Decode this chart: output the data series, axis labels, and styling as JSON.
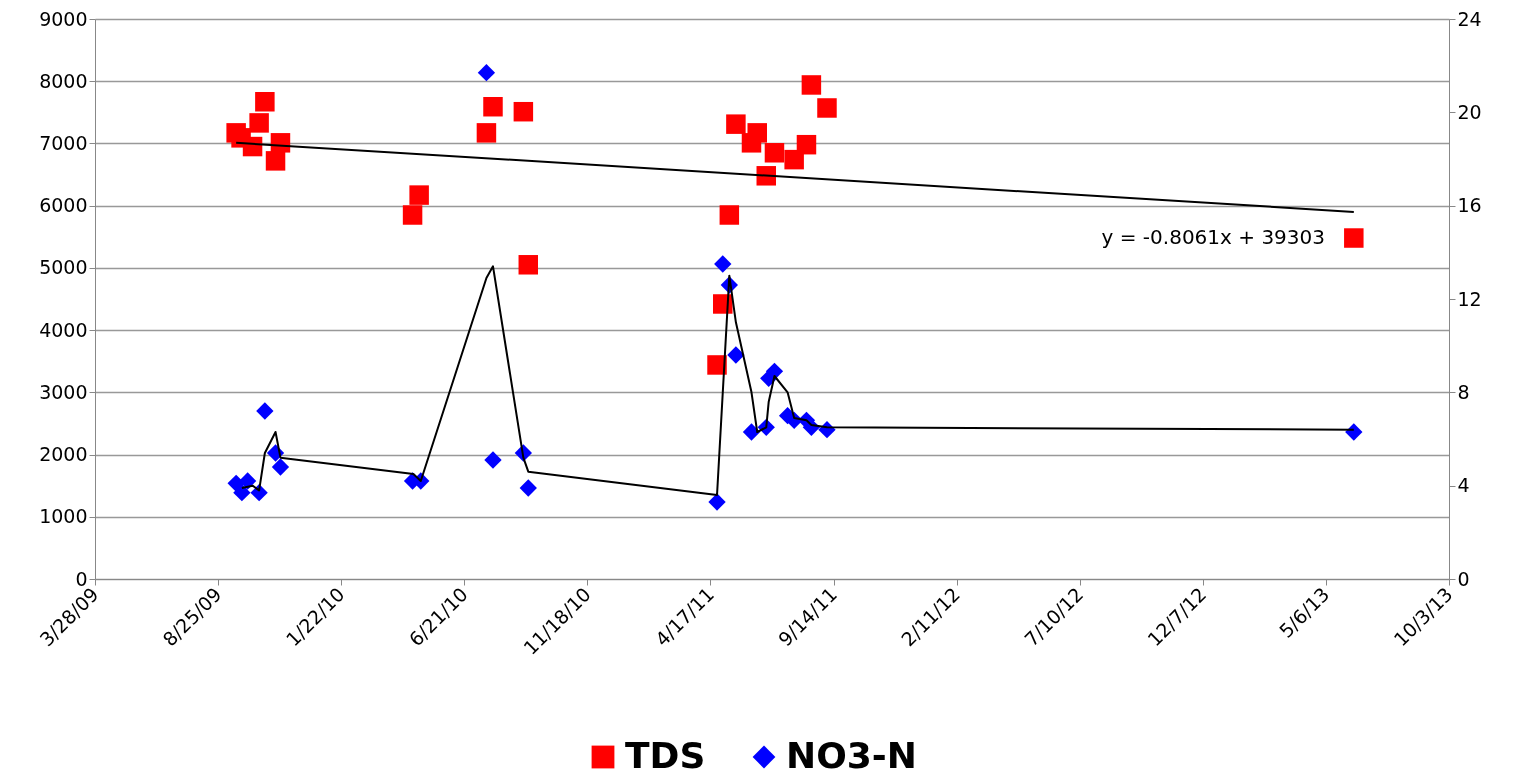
{
  "chart_data": {
    "type": "scatter",
    "xlim": [
      "2009-03-28",
      "2013-10-03"
    ],
    "xticks": [
      {
        "value": "2009-03-28",
        "label": "3/28/09"
      },
      {
        "value": "2009-08-25",
        "label": "8/25/09"
      },
      {
        "value": "2010-01-22",
        "label": "1/22/10"
      },
      {
        "value": "2010-06-21",
        "label": "6/21/10"
      },
      {
        "value": "2010-11-18",
        "label": "11/18/10"
      },
      {
        "value": "2011-04-17",
        "label": "4/17/11"
      },
      {
        "value": "2011-09-14",
        "label": "9/14/11"
      },
      {
        "value": "2012-02-11",
        "label": "2/11/12"
      },
      {
        "value": "2012-07-10",
        "label": "7/10/12"
      },
      {
        "value": "2012-12-07",
        "label": "12/7/12"
      },
      {
        "value": "2013-05-06",
        "label": "5/6/13"
      },
      {
        "value": "2013-10-03",
        "label": "10/3/13"
      }
    ],
    "ylim": [
      0,
      9000
    ],
    "yticks": [
      0,
      1000,
      2000,
      3000,
      4000,
      5000,
      6000,
      7000,
      8000,
      9000
    ],
    "y2lim": [
      0,
      24
    ],
    "y2ticks": [
      0,
      4,
      8,
      12,
      16,
      20,
      24
    ],
    "grid": "y",
    "legend": "bottom",
    "annotations": [
      "y = -0.8061x + 39303"
    ],
    "series": [
      {
        "name": "TDS",
        "marker": "square",
        "color": "#ff0000",
        "x": [
          "2009-09-16",
          "2009-09-22",
          "2009-10-06",
          "2009-10-14",
          "2009-10-21",
          "2009-11-03",
          "2009-11-09",
          "2010-04-19",
          "2010-04-27",
          "2010-07-18",
          "2010-07-26",
          "2010-09-01",
          "2010-09-07",
          "2011-04-25",
          "2011-05-02",
          "2011-05-10",
          "2011-05-18",
          "2011-06-06",
          "2011-06-13",
          "2011-06-24",
          "2011-07-04",
          "2011-07-28",
          "2011-08-12",
          "2011-08-18",
          "2011-09-06",
          "2013-06-09"
        ],
        "values": [
          7170,
          7090,
          6950,
          7330,
          7670,
          6720,
          7010,
          5850,
          6170,
          7170,
          7590,
          7510,
          5050,
          3440,
          4420,
          5850,
          7310,
          7010,
          7170,
          6480,
          6850,
          6740,
          6980,
          7940,
          7570,
          5480
        ]
      },
      {
        "name": "NO3-N",
        "marker": "diamond",
        "color": "#0000ff",
        "axis": "y2",
        "x": [
          "2009-09-16",
          "2009-09-23",
          "2009-09-30",
          "2009-10-14",
          "2009-10-21",
          "2009-11-03",
          "2009-11-09",
          "2010-04-19",
          "2010-04-29",
          "2010-07-18",
          "2010-07-26",
          "2010-09-01",
          "2010-09-07",
          "2011-04-25",
          "2011-05-02",
          "2011-05-10",
          "2011-05-18",
          "2011-06-06",
          "2011-06-24",
          "2011-06-27",
          "2011-07-04",
          "2011-07-20",
          "2011-07-28",
          "2011-08-12",
          "2011-08-18",
          "2011-09-06",
          "2013-06-09"
        ],
        "values": [
          4.1,
          3.7,
          4.2,
          3.7,
          7.2,
          5.4,
          4.8,
          4.2,
          4.2,
          21.7,
          5.1,
          5.4,
          3.9,
          3.3,
          13.5,
          12.6,
          9.6,
          6.3,
          6.5,
          8.6,
          8.9,
          7.0,
          6.8,
          6.8,
          6.5,
          6.4,
          6.3
        ]
      },
      {
        "type": "line",
        "color": "#000000",
        "x": [
          "2009-09-16",
          "2013-06-09"
        ],
        "values": [
          7010,
          5900
        ]
      },
      {
        "type": "line",
        "color": "#000000",
        "axis": "y2",
        "x": [
          "2009-09-23",
          "2009-10-06",
          "2009-10-14",
          "2009-10-21",
          "2009-11-03",
          "2009-11-09",
          "2010-04-20",
          "2010-04-29",
          "2010-07-18",
          "2010-07-26",
          "2010-09-01",
          "2010-09-07",
          "2011-04-25",
          "2011-05-10",
          "2011-05-18",
          "2011-06-06",
          "2011-06-13",
          "2011-06-24",
          "2011-06-27",
          "2011-07-04",
          "2011-07-20",
          "2011-07-28",
          "2011-08-12",
          "2011-08-18",
          "2011-09-06",
          "2013-06-09"
        ],
        "values": [
          3.9,
          4.0,
          3.8,
          5.4,
          6.3,
          5.2,
          4.5,
          4.2,
          12.9,
          13.4,
          5.2,
          4.6,
          3.6,
          13.0,
          11.0,
          8.0,
          6.3,
          6.5,
          7.6,
          8.7,
          8.0,
          6.9,
          6.8,
          6.6,
          6.5,
          6.4
        ]
      }
    ]
  }
}
